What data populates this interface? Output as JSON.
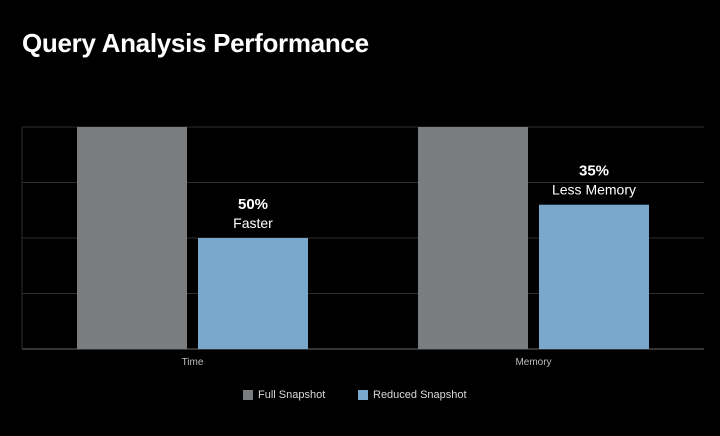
{
  "title": "Query Analysis Performance",
  "chart_data": {
    "type": "bar",
    "title": "Query Analysis Performance",
    "categories": [
      "Time",
      "Memory"
    ],
    "series": [
      {
        "name": "Full Snapshot",
        "values": [
          100,
          100
        ],
        "color": "#7a7d80"
      },
      {
        "name": "Reduced Snapshot",
        "values": [
          50,
          65
        ],
        "color": "#7aa7cc"
      }
    ],
    "annotations": [
      {
        "category": "Time",
        "series": "Reduced Snapshot",
        "value_label": "50%",
        "text": "Faster"
      },
      {
        "category": "Memory",
        "series": "Reduced Snapshot",
        "value_label": "35%",
        "text": "Less Memory"
      }
    ],
    "ylim": [
      0,
      100
    ],
    "grid": true,
    "legend": "bottom-center",
    "xlabel": "",
    "ylabel": ""
  }
}
